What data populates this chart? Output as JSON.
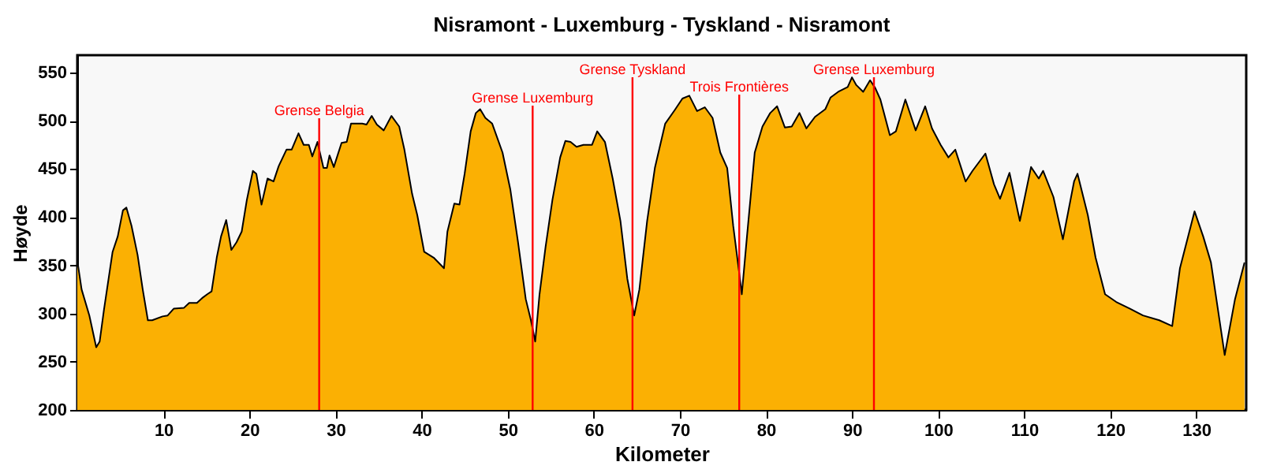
{
  "chart_data": {
    "type": "area",
    "title": "Nisramont - Luxemburg - Tyskland - Nisramont",
    "xlabel": "Kilometer",
    "ylabel": "Høyde",
    "xlim": [
      0,
      135.8
    ],
    "ylim": [
      200,
      568
    ],
    "xticks": [
      10,
      20,
      30,
      40,
      50,
      60,
      70,
      80,
      90,
      100,
      110,
      120,
      130
    ],
    "yticks": [
      200,
      250,
      300,
      350,
      400,
      450,
      500,
      550
    ],
    "grid": false,
    "x": [
      0,
      0.5,
      1.4,
      2.2,
      2.6,
      3.1,
      4.1,
      4.7,
      5.3,
      5.7,
      6.3,
      7.0,
      7.6,
      8.2,
      8.7,
      9.9,
      10.5,
      11.2,
      12.4,
      13.0,
      13.9,
      14.5,
      15.1,
      15.6,
      16.2,
      16.7,
      17.3,
      17.9,
      18.5,
      19.1,
      19.7,
      20.4,
      20.8,
      21.4,
      22.1,
      22.8,
      23.4,
      24.3,
      24.9,
      25.7,
      26.3,
      26.9,
      27.3,
      27.9,
      28.6,
      29.0,
      29.3,
      29.8,
      30.7,
      31.3,
      31.8,
      33.1,
      33.6,
      34.2,
      34.8,
      35.6,
      36.5,
      37.4,
      38.0,
      38.9,
      39.5,
      40.3,
      41.4,
      42.6,
      43.0,
      43.8,
      44.4,
      45.0,
      45.7,
      46.3,
      46.8,
      47.4,
      48.2,
      49.4,
      50.3,
      51.2,
      52.1,
      52.7,
      53.2,
      53.7,
      54.4,
      55.2,
      56.1,
      56.7,
      57.3,
      58.0,
      58.8,
      59.8,
      60.4,
      61.3,
      62.2,
      63.1,
      63.9,
      64.7,
      65.3,
      66.2,
      67.1,
      68.3,
      69.4,
      70.3,
      71.1,
      72.0,
      72.9,
      73.8,
      74.7,
      75.5,
      76.2,
      76.9,
      77.2,
      77.8,
      78.7,
      79.6,
      80.5,
      81.3,
      82.2,
      83.0,
      83.9,
      84.7,
      85.7,
      86.9,
      87.5,
      88.4,
      89.5,
      90.0,
      90.5,
      91.3,
      92.1,
      92.7,
      93.3,
      94.4,
      95.1,
      96.2,
      97.4,
      98.5,
      99.3,
      100.3,
      101.2,
      102.0,
      103.2,
      104.0,
      105.5,
      106.5,
      107.2,
      108.3,
      109.5,
      110.8,
      111.7,
      112.2,
      113.4,
      114.5,
      115.8,
      116.2,
      117.4,
      118.3,
      119.4,
      120.7,
      122.3,
      123.8,
      125.7,
      127.2,
      128.1,
      129.8,
      130.8,
      131.7,
      133.3,
      134.5,
      135.6
    ],
    "series": [
      {
        "color": "#fbb003",
        "values": [
          355,
          325,
          298,
          265,
          271,
          304,
          364,
          380,
          407,
          410,
          391,
          361,
          325,
          293,
          293,
          297,
          298,
          305,
          306,
          311,
          311,
          316,
          320,
          323,
          358,
          380,
          397,
          366,
          374,
          385,
          418,
          448,
          445,
          413,
          440,
          437,
          453,
          470,
          470,
          487,
          475,
          475,
          463,
          478,
          451,
          451,
          464,
          452,
          477,
          478,
          497,
          497,
          496,
          505,
          496,
          490,
          505,
          494,
          470,
          424,
          402,
          364,
          358,
          347,
          385,
          414,
          413,
          445,
          489,
          508,
          512,
          503,
          497,
          467,
          429,
          374,
          315,
          293,
          271,
          320,
          369,
          418,
          462,
          479,
          478,
          473,
          475,
          475,
          489,
          478,
          440,
          396,
          336,
          298,
          325,
          396,
          451,
          497,
          511,
          523,
          526,
          510,
          514,
          503,
          467,
          451,
          391,
          342,
          320,
          380,
          467,
          494,
          508,
          515,
          493,
          494,
          508,
          492,
          504,
          512,
          524,
          530,
          535,
          545,
          537,
          530,
          542,
          534,
          522,
          485,
          489,
          522,
          490,
          515,
          492,
          475,
          462,
          470,
          437,
          448,
          466,
          434,
          419,
          446,
          396,
          452,
          440,
          448,
          421,
          377,
          437,
          445,
          402,
          358,
          320,
          312,
          305,
          298,
          293,
          287,
          347,
          406,
          380,
          353,
          257,
          315,
          353
        ]
      }
    ],
    "ref_lines": [
      {
        "axis": "x",
        "value": 28.1,
        "label": "Grense Belgia",
        "color": "#ff0000"
      },
      {
        "axis": "x",
        "value": 52.9,
        "label": "Grense Luxemburg",
        "color": "#ff0000"
      },
      {
        "axis": "x",
        "value": 64.5,
        "label": "Grense Tyskland",
        "color": "#ff0000"
      },
      {
        "axis": "x",
        "value": 76.9,
        "label": "Trois Frontières",
        "color": "#ff0000"
      },
      {
        "axis": "x",
        "value": 92.55,
        "label": "Grense Luxemburg",
        "color": "#ff0000"
      }
    ]
  }
}
